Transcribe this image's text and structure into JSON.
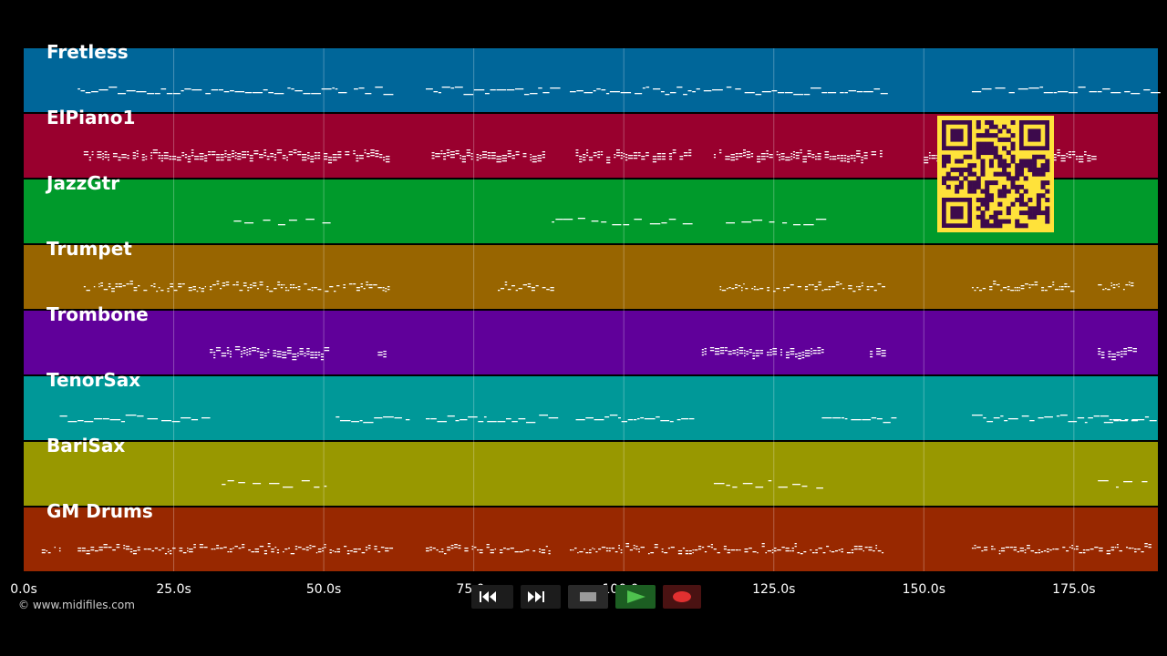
{
  "copyright": "© www.midifiles.com",
  "timeline": {
    "duration_s": 189,
    "tick_labels": [
      "0.0s",
      "25.0s",
      "50.0s",
      "75.0s",
      "100.0s",
      "125.0s",
      "150.0s",
      "175.0s"
    ],
    "tick_values_s": [
      0,
      25,
      50,
      75,
      100,
      125,
      150,
      175
    ]
  },
  "tracks": [
    {
      "name": "Fretless",
      "color": "#006699",
      "style": "line",
      "segments": [
        [
          9,
          53
        ],
        [
          55,
          61
        ],
        [
          67,
          88
        ],
        [
          91,
          134
        ],
        [
          136,
          143
        ],
        [
          158,
          188
        ]
      ]
    },
    {
      "name": "ElPiano1",
      "color": "#99002e",
      "style": "chords",
      "segments": [
        [
          10,
          61
        ],
        [
          68,
          87
        ],
        [
          92,
          111
        ],
        [
          115,
          143
        ],
        [
          150,
          178
        ]
      ]
    },
    {
      "name": "JazzGtr",
      "color": "#009a2b",
      "style": "sparse",
      "segments": [
        [
          35,
          51
        ],
        [
          88,
          112
        ],
        [
          117,
          133
        ]
      ]
    },
    {
      "name": "Trumpet",
      "color": "#986500",
      "style": "dense",
      "segments": [
        [
          10,
          61
        ],
        [
          79,
          88
        ],
        [
          116,
          143
        ],
        [
          158,
          175
        ],
        [
          179,
          185
        ]
      ]
    },
    {
      "name": "Trombone",
      "color": "#60009a",
      "style": "chords",
      "segments": [
        [
          31,
          51
        ],
        [
          59,
          61
        ],
        [
          113,
          133
        ],
        [
          141,
          143
        ],
        [
          179,
          185
        ]
      ]
    },
    {
      "name": "TenorSax",
      "color": "#009898",
      "style": "line",
      "segments": [
        [
          6,
          30
        ],
        [
          52,
          64
        ],
        [
          67,
          88
        ],
        [
          92,
          112
        ],
        [
          133,
          145
        ],
        [
          158,
          185
        ],
        [
          180,
          188
        ]
      ]
    },
    {
      "name": "BariSax",
      "color": "#989800",
      "style": "sparse",
      "segments": [
        [
          33,
          51
        ],
        [
          115,
          133
        ],
        [
          179,
          188
        ]
      ]
    },
    {
      "name": "GM Drums",
      "color": "#982800",
      "style": "dense",
      "segments": [
        [
          3,
          6
        ],
        [
          9,
          61
        ],
        [
          67,
          88
        ],
        [
          91,
          143
        ],
        [
          158,
          188
        ]
      ]
    }
  ],
  "transport": {
    "buttons": [
      {
        "name": "rewind",
        "icon": "rewind-icon"
      },
      {
        "name": "forward",
        "icon": "fast-forward-icon"
      },
      {
        "name": "stop",
        "icon": "stop-icon"
      },
      {
        "name": "play",
        "icon": "play-icon"
      },
      {
        "name": "record",
        "icon": "record-icon"
      }
    ]
  },
  "qr": {
    "icon": "qr-code-icon",
    "color": "#ffe23a",
    "dark": "#3d0a4c"
  }
}
